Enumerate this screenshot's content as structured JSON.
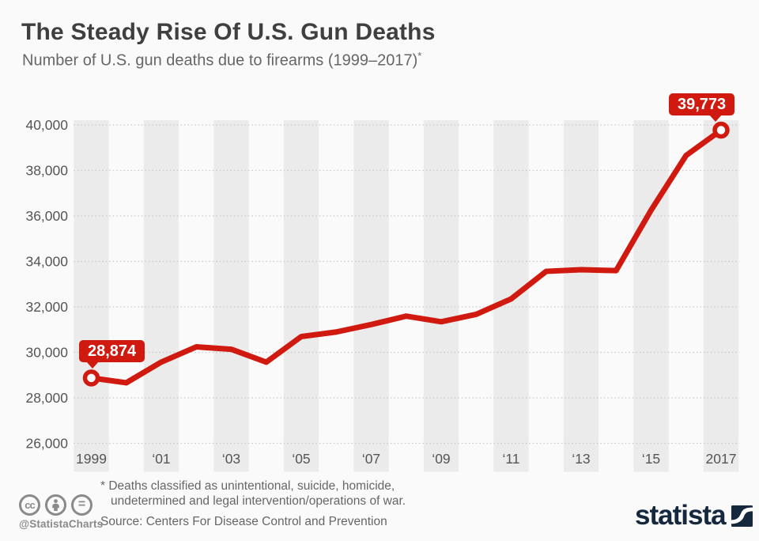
{
  "header": {
    "title": "The Steady Rise Of U.S. Gun Deaths",
    "subtitle": "Number of U.S. gun deaths due to firearms (1999–2017)",
    "subtitle_note_marker": "*"
  },
  "chart_data": {
    "type": "line",
    "title": "The Steady Rise Of U.S. Gun Deaths",
    "subtitle": "Number of U.S. gun deaths due to firearms (1999–2017)*",
    "xlabel": "",
    "ylabel": "",
    "x": [
      1999,
      2000,
      2001,
      2002,
      2003,
      2004,
      2005,
      2006,
      2007,
      2008,
      2009,
      2010,
      2011,
      2012,
      2013,
      2014,
      2015,
      2016,
      2017
    ],
    "values": [
      28874,
      28663,
      29573,
      30242,
      30136,
      29569,
      30694,
      30896,
      31224,
      31593,
      31347,
      31672,
      32351,
      33563,
      33636,
      33594,
      36252,
      38658,
      39773
    ],
    "ylim": [
      26000,
      40000
    ],
    "ytick_step": 2000,
    "ytick_labels": [
      "40,000",
      "38,000",
      "36,000",
      "34,000",
      "32,000",
      "30,000",
      "28,000",
      "26,000"
    ],
    "xticks": [
      {
        "year": 1999,
        "label": "1999"
      },
      {
        "year": 2001,
        "label": "‘01"
      },
      {
        "year": 2003,
        "label": "‘03"
      },
      {
        "year": 2005,
        "label": "‘05"
      },
      {
        "year": 2007,
        "label": "‘07"
      },
      {
        "year": 2009,
        "label": "‘09"
      },
      {
        "year": 2011,
        "label": "‘11"
      },
      {
        "year": 2013,
        "label": "‘13"
      },
      {
        "year": 2015,
        "label": "‘15"
      },
      {
        "year": 2017,
        "label": "2017"
      }
    ],
    "grid": true,
    "legend_position": "none",
    "line_color": "#d11a0f",
    "band_color": "#ebebeb",
    "grid_color": "#c8c8c8",
    "axis_text_color": "#555555",
    "marker_fill": "#ffffff",
    "callouts": [
      {
        "year": 1999,
        "value": 28874,
        "label": "28,874"
      },
      {
        "year": 2017,
        "value": 39773,
        "label": "39,773"
      }
    ]
  },
  "footer": {
    "license_icons": [
      "cc-icon",
      "attribution-icon",
      "equals-icon"
    ],
    "handle": "@StatistaCharts",
    "footnote_line1": "* Deaths classified as unintentional, suicide, homicide,",
    "footnote_line2": "undetermined and legal intervention/operations of war.",
    "source": "Source: Centers For Disease Control and Prevention",
    "brand": "statista",
    "brand_color": "#15283e"
  }
}
